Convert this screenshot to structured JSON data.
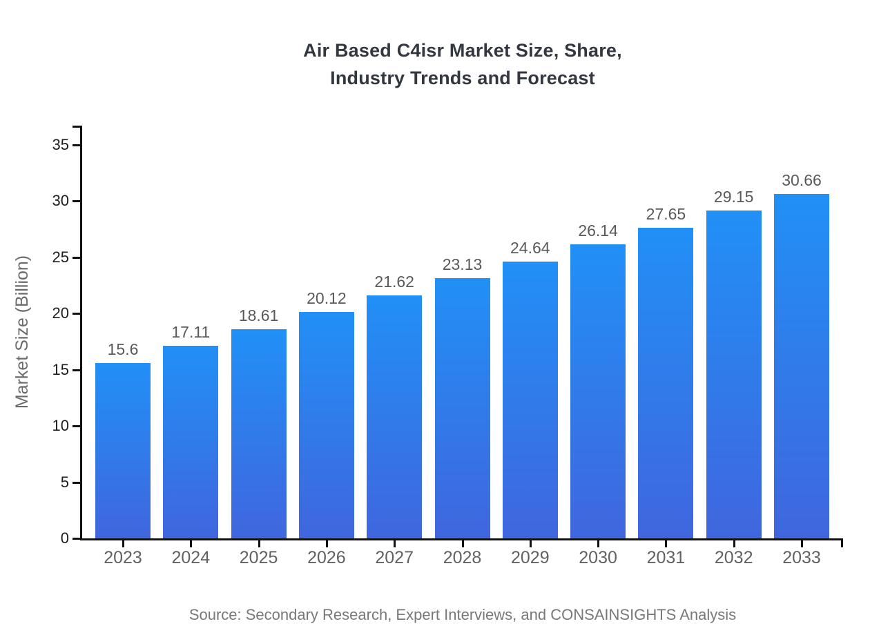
{
  "chart_data": {
    "type": "bar",
    "title": "Air Based C4isr Market Size, Share,\nIndustry Trends and Forecast",
    "categories": [
      "2023",
      "2024",
      "2025",
      "2026",
      "2027",
      "2028",
      "2029",
      "2030",
      "2031",
      "2032",
      "2033"
    ],
    "values": [
      15.6,
      17.11,
      18.61,
      20.12,
      21.62,
      23.13,
      24.64,
      26.14,
      27.65,
      29.15,
      30.66
    ],
    "value_labels": [
      "15.6",
      "17.11",
      "18.61",
      "20.12",
      "21.62",
      "23.13",
      "24.64",
      "26.14",
      "27.65",
      "29.15",
      "30.66"
    ],
    "xlabel": "",
    "ylabel": "Market Size (Billion)",
    "ylim": [
      0,
      35
    ],
    "yticks": [
      0,
      5,
      10,
      15,
      20,
      25,
      30,
      35
    ],
    "grid": false,
    "legend": "none",
    "source": "Source: Secondary Research, Expert Interviews, and CONSAINSIGHTS Analysis",
    "colors": {
      "bar_gradient_top": "#2190f6",
      "bar_gradient_bottom": "#4066de",
      "axis": "#111111",
      "title_text": "#333740",
      "tick_label_text": "#1c1c1c",
      "category_text": "#616161",
      "value_label_text": "#595959",
      "ylabel_text": "#6b6b6b",
      "source_text": "#787878"
    }
  }
}
